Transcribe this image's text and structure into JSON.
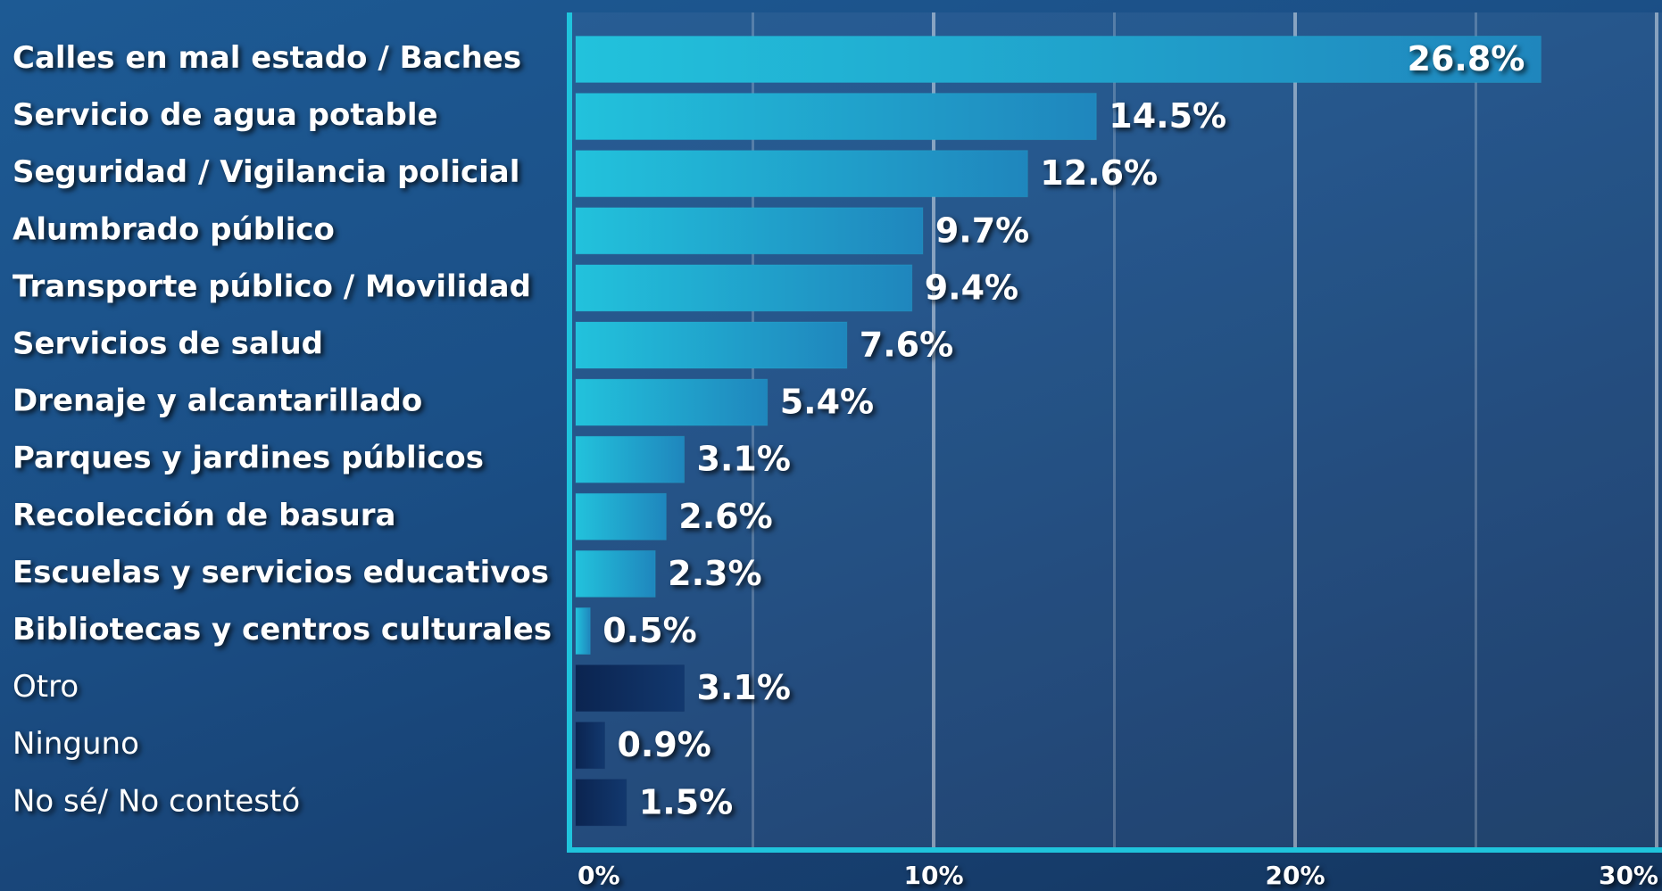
{
  "chart_data": {
    "type": "bar",
    "orientation": "horizontal",
    "categories": [
      "Calles en mal estado / Baches",
      "Servicio de agua potable",
      "Seguridad / Vigilancia policial",
      "Alumbrado público",
      "Transporte público / Movilidad",
      "Servicios de salud",
      "Drenaje y alcantarillado",
      "Parques y jardines públicos",
      "Recolección de basura",
      "Escuelas y servicios educativos",
      "Bibliotecas y centros culturales",
      "Otro",
      "Ninguno",
      "No sé/ No contestó"
    ],
    "values": [
      26.8,
      14.5,
      12.6,
      9.7,
      9.4,
      7.6,
      5.4,
      3.1,
      2.6,
      2.3,
      0.5,
      3.1,
      0.9,
      1.5
    ],
    "value_labels": [
      "26.8%",
      "14.5%",
      "12.6%",
      "9.7%",
      "9.4%",
      "7.6%",
      "5.4%",
      "3.1%",
      "2.6%",
      "2.3%",
      "0.5%",
      "3.1%",
      "0.9%",
      "1.5%"
    ],
    "colors": [
      "#22bcd8",
      "#22bcd8",
      "#22bcd8",
      "#22bcd8",
      "#22bcd8",
      "#22bcd8",
      "#22bcd8",
      "#22bcd8",
      "#22bcd8",
      "#22bcd8",
      "#22bcd8",
      "#0e2c5c",
      "#0e2c5c",
      "#0e2c5c"
    ],
    "label_styles": [
      "bold",
      "bold",
      "bold",
      "bold",
      "bold",
      "bold",
      "bold",
      "bold",
      "bold",
      "bold",
      "bold",
      "normal",
      "normal",
      "normal"
    ],
    "xlim": [
      0,
      30
    ],
    "xticks": [
      {
        "value": 0,
        "label": "0%"
      },
      {
        "value": 10,
        "label": "10%"
      },
      {
        "value": 20,
        "label": "20%"
      },
      {
        "value": 30,
        "label": "30%"
      }
    ],
    "minor_xticks": [
      5,
      15,
      25
    ],
    "grid": true
  }
}
